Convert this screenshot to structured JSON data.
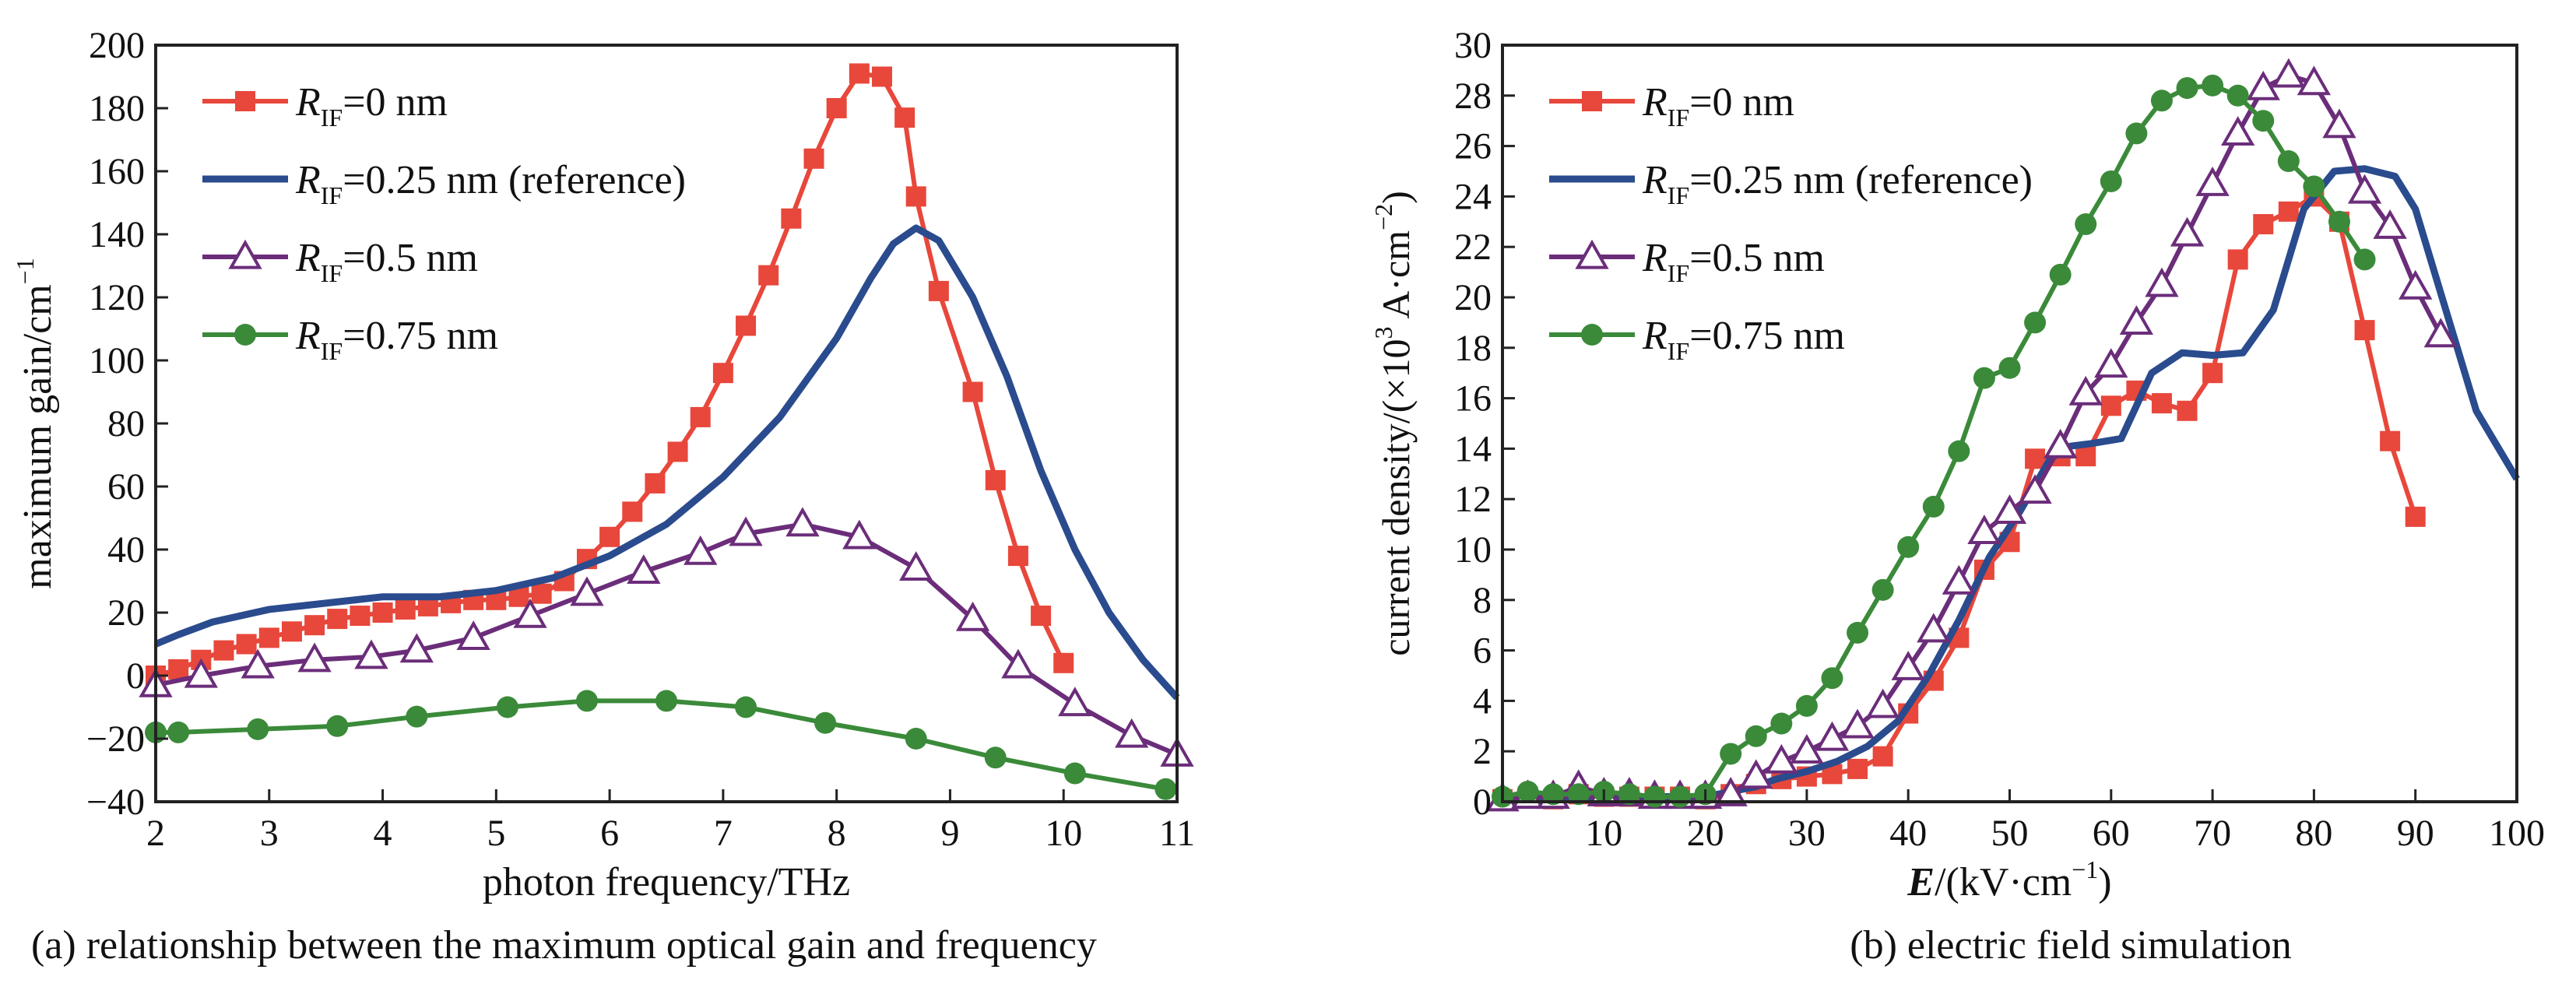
{
  "chart_data": [
    {
      "type": "line",
      "caption": "(a) relationship between the maximum optical gain and frequency",
      "xlabel": "photon frequency/THz",
      "ylabel_main": "maximum gain/cm",
      "ylabel_sup": "−1",
      "xlim": [
        2,
        11
      ],
      "ylim": [
        -40,
        200
      ],
      "xticks": [
        "2",
        "3",
        "4",
        "5",
        "6",
        "7",
        "8",
        "9",
        "10",
        "11"
      ],
      "yticks": [
        "−40",
        "−20",
        "0",
        "20",
        "40",
        "60",
        "80",
        "100",
        "120",
        "140",
        "160",
        "180",
        "200"
      ],
      "grid": false,
      "legend_position": "top-left",
      "series": [
        {
          "label_main": "R",
          "label_sub": "IF",
          "label_rest": "=0 nm",
          "color": "#e8473b",
          "marker": "square",
          "x": [
            2.0,
            2.2,
            2.4,
            2.6,
            2.8,
            3.0,
            3.2,
            3.4,
            3.6,
            3.8,
            4.0,
            4.2,
            4.4,
            4.6,
            4.8,
            5.0,
            5.2,
            5.4,
            5.6,
            5.8,
            6.0,
            6.2,
            6.4,
            6.6,
            6.8,
            7.0,
            7.2,
            7.4,
            7.6,
            7.8,
            8.0,
            8.2,
            8.4,
            8.6,
            8.7,
            8.9,
            9.2,
            9.4,
            9.6,
            9.8,
            10.0,
            10.2,
            10.4,
            10.6,
            10.8,
            10.95
          ],
          "y": [
            0,
            2,
            5,
            8,
            10,
            12,
            14,
            16,
            18,
            19,
            20,
            21,
            22,
            23,
            24,
            24,
            25,
            26,
            30,
            37,
            44,
            52,
            61,
            71,
            82,
            96,
            111,
            127,
            145,
            164,
            180,
            191,
            190,
            177,
            152,
            122,
            90,
            62,
            38,
            19,
            4,
            null,
            null,
            null,
            null,
            null
          ]
        },
        {
          "label_main": "R",
          "label_sub": "IF",
          "label_rest": "=0.25 nm (reference)",
          "color": "#2a4b8d",
          "marker": "none",
          "x": [
            2.0,
            2.2,
            2.5,
            3.0,
            3.5,
            4.0,
            4.5,
            5.0,
            5.5,
            6.0,
            6.5,
            7.0,
            7.5,
            8.0,
            8.3,
            8.5,
            8.7,
            8.9,
            9.2,
            9.5,
            9.8,
            10.1,
            10.4,
            10.7,
            11.0
          ],
          "y": [
            10,
            13,
            17,
            21,
            23,
            25,
            25,
            27,
            31,
            38,
            48,
            63,
            82,
            107,
            126,
            137,
            142,
            138,
            120,
            95,
            65,
            40,
            20,
            5,
            -7
          ]
        },
        {
          "label_main": "R",
          "label_sub": "IF",
          "label_rest": "=0.5 nm",
          "color": "#6b2d7a",
          "marker": "triangle",
          "x": [
            2.0,
            2.4,
            2.9,
            3.4,
            3.9,
            4.3,
            4.8,
            5.3,
            5.8,
            6.3,
            6.8,
            7.2,
            7.7,
            8.2,
            8.7,
            9.2,
            9.6,
            10.1,
            10.6,
            11.0
          ],
          "y": [
            -3,
            0,
            3,
            5,
            6,
            8,
            12,
            19,
            26,
            33,
            39,
            45,
            48,
            44,
            34,
            18,
            3,
            -9,
            -19,
            -25
          ]
        },
        {
          "label_main": "R",
          "label_sub": "IF",
          "label_rest": "=0.75 nm",
          "color": "#3a8a3a",
          "marker": "circle",
          "x": [
            2.0,
            2.2,
            2.9,
            3.6,
            4.3,
            5.1,
            5.8,
            6.5,
            7.2,
            7.9,
            8.7,
            9.4,
            10.1,
            10.9
          ],
          "y": [
            -18,
            -18,
            -17,
            -16,
            -13,
            -10,
            -8,
            -8,
            -10,
            -15,
            -20,
            -26,
            -31,
            -36
          ]
        }
      ]
    },
    {
      "type": "line",
      "caption": "(b) electric field simulation",
      "xlabel_italic": "E",
      "xlabel_rest": "/(kV·cm",
      "xlabel_sup": "−1",
      "xlabel_end": ")",
      "ylabel_main": "current density/(×10",
      "ylabel_sup1": "3",
      "ylabel_mid": " A·cm",
      "ylabel_sup2": "−2",
      "ylabel_end": ")",
      "xlim": [
        0,
        100
      ],
      "ylim": [
        0,
        30
      ],
      "xticks": [
        "10",
        "20",
        "30",
        "40",
        "50",
        "60",
        "70",
        "80",
        "90",
        "100"
      ],
      "yticks": [
        "0",
        "2",
        "4",
        "6",
        "8",
        "10",
        "12",
        "14",
        "16",
        "18",
        "20",
        "22",
        "24",
        "26",
        "28",
        "30"
      ],
      "grid": false,
      "legend_position": "top-left",
      "series": [
        {
          "label_main": "R",
          "label_sub": "IF",
          "label_rest": "=0 nm",
          "color": "#e8473b",
          "marker": "square",
          "x": [
            0,
            2.5,
            5,
            7.5,
            10,
            12.5,
            15,
            17.5,
            20,
            22.5,
            25,
            27.5,
            30,
            32.5,
            35,
            37.5,
            40,
            42.5,
            45,
            47.5,
            50,
            52.5,
            55,
            57.5,
            60,
            62.5,
            65,
            67.5,
            70,
            72.5,
            75,
            77.5,
            80,
            82.5,
            85,
            87.5,
            90,
            92.5,
            95,
            97.5,
            100
          ],
          "y": [
            0.1,
            0.2,
            0.1,
            0.3,
            0.2,
            0.2,
            0.2,
            0.2,
            0.1,
            0.3,
            0.7,
            0.9,
            1.0,
            1.1,
            1.3,
            1.8,
            3.5,
            4.8,
            6.5,
            9.2,
            10.3,
            13.6,
            13.7,
            13.7,
            15.7,
            16.3,
            15.8,
            15.5,
            17.0,
            21.5,
            22.9,
            23.4,
            24.0,
            23.0,
            18.7,
            14.3,
            11.3,
            null,
            null,
            null,
            null
          ]
        },
        {
          "label_main": "R",
          "label_sub": "IF",
          "label_rest": "=0.25 nm (reference)",
          "color": "#2a4b8d",
          "marker": "none",
          "x": [
            0,
            5,
            10,
            15,
            20,
            25,
            27,
            30,
            33,
            36,
            39,
            42,
            45,
            48,
            51,
            54,
            56,
            58,
            61,
            64,
            67,
            70,
            73,
            76,
            79,
            82,
            85,
            88,
            90,
            93,
            96,
            100
          ],
          "y": [
            0.1,
            0.2,
            0.2,
            0.2,
            0.2,
            0.6,
            0.9,
            1.2,
            1.6,
            2.2,
            3.2,
            5.0,
            7.2,
            9.7,
            11.5,
            13.6,
            14.1,
            14.2,
            14.4,
            17.0,
            17.8,
            17.7,
            17.8,
            19.5,
            23.5,
            25.0,
            25.1,
            24.8,
            23.5,
            19.5,
            15.5,
            12.8
          ]
        },
        {
          "label_main": "R",
          "label_sub": "IF",
          "label_rest": "=0.5 nm",
          "color": "#6b2d7a",
          "marker": "triangle",
          "x": [
            0,
            2.5,
            5,
            7.5,
            10,
            12.5,
            15,
            17.5,
            20,
            22.5,
            25,
            27.5,
            30,
            32.5,
            35,
            37.5,
            40,
            42.5,
            45,
            47.5,
            50,
            52.5,
            55,
            57.5,
            60,
            62.5,
            65,
            67.5,
            70,
            72.5,
            75,
            77.5,
            80,
            82.5,
            85,
            87.5,
            90,
            92.5,
            95,
            97.5,
            100
          ],
          "y": [
            0.1,
            0.2,
            0.2,
            0.6,
            0.3,
            0.3,
            0.2,
            0.2,
            0.2,
            0.3,
            1.0,
            1.6,
            2.0,
            2.5,
            3.0,
            3.8,
            5.3,
            6.8,
            8.7,
            10.7,
            11.5,
            12.3,
            14.1,
            16.2,
            17.3,
            19.0,
            20.5,
            22.5,
            24.5,
            26.5,
            28.3,
            28.8,
            28.5,
            26.8,
            24.2,
            22.8,
            20.4,
            18.5,
            null,
            null,
            null
          ]
        },
        {
          "label_main": "R",
          "label_sub": "IF",
          "label_rest": "=0.75 nm",
          "color": "#3a8a3a",
          "marker": "circle",
          "x": [
            0,
            2.5,
            5,
            7.5,
            10,
            12.5,
            15,
            17.5,
            20,
            22.5,
            25,
            27.5,
            30,
            32.5,
            35,
            37.5,
            40,
            42.5,
            45,
            47.5,
            50,
            52.5,
            55,
            57.5,
            60,
            62.5,
            65,
            67.5,
            70,
            72.5,
            75,
            77.5,
            80,
            82.5,
            85,
            87.5,
            90,
            92.5,
            95,
            97.5,
            100
          ],
          "y": [
            0.2,
            0.4,
            0.3,
            0.3,
            0.4,
            0.3,
            0.2,
            0.2,
            0.3,
            1.9,
            2.6,
            3.1,
            3.8,
            4.9,
            6.7,
            8.4,
            10.1,
            11.7,
            13.9,
            16.8,
            17.2,
            19.0,
            20.9,
            22.9,
            24.6,
            26.5,
            27.8,
            28.3,
            28.4,
            28.0,
            27.0,
            25.4,
            24.4,
            23.0,
            21.5,
            null,
            null,
            null,
            null,
            null,
            null
          ]
        }
      ]
    }
  ]
}
